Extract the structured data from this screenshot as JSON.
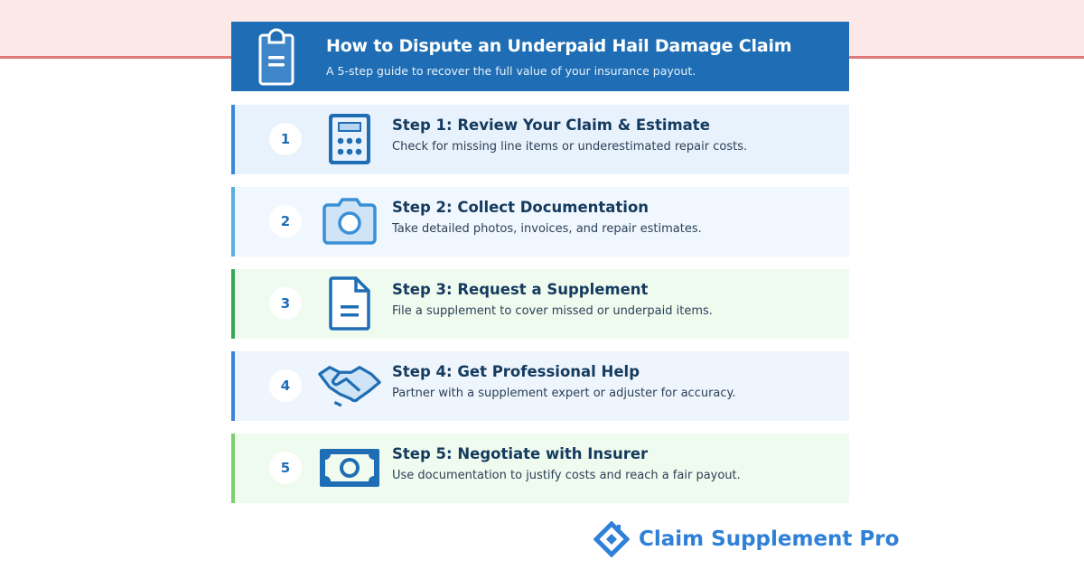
{
  "header": {
    "title": "How to Dispute an Underpaid Hail Damage Claim",
    "subtitle": "A 5-step guide to recover the full value of your insurance payout.",
    "icon": "clipboard-icon"
  },
  "steps": [
    {
      "number": "1",
      "title": "Step 1: Review Your Claim & Estimate",
      "description": "Check for missing line items or underestimated repair costs.",
      "icon": "calculator-icon",
      "accent": "#3a86d8",
      "background": "#e8f2fd"
    },
    {
      "number": "2",
      "title": "Step 2: Collect Documentation",
      "description": "Take detailed photos, invoices, and repair estimates.",
      "icon": "camera-icon",
      "accent": "#5aaee3",
      "background": "#f0f7fe"
    },
    {
      "number": "3",
      "title": "Step 3: Request a Supplement",
      "description": "File a supplement to cover missed or underpaid items.",
      "icon": "document-icon",
      "accent": "#3aa65a",
      "background": "#f0fbf0"
    },
    {
      "number": "4",
      "title": "Step 4: Get Professional Help",
      "description": "Partner with a supplement expert or adjuster for accuracy.",
      "icon": "handshake-icon",
      "accent": "#3a86d8",
      "background": "#eef5fd"
    },
    {
      "number": "5",
      "title": "Step 5: Negotiate with Insurer",
      "description": "Use documentation to justify costs and reach a fair payout.",
      "icon": "money-icon",
      "accent": "#7dcf6f",
      "background": "#effbef"
    }
  ],
  "brand": {
    "name": "Claim Supplement Pro",
    "color": "#2f80d8"
  }
}
